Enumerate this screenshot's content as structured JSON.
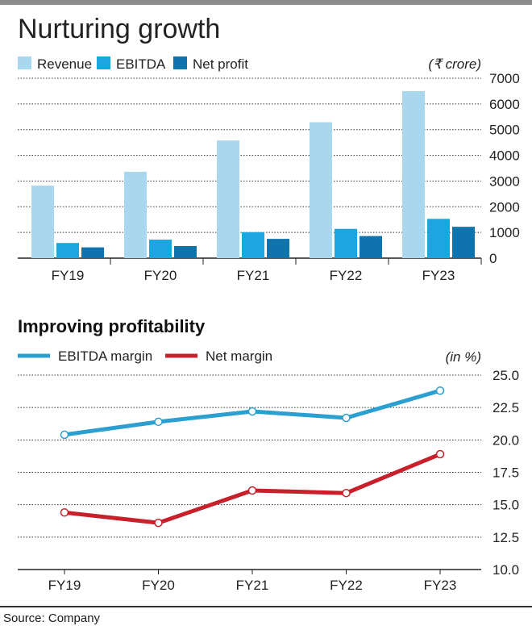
{
  "source": "Source: Company",
  "chart_data": [
    {
      "type": "bar",
      "title": "Nurturing growth",
      "unit": "(₹ crore)",
      "categories": [
        "FY19",
        "FY20",
        "FY21",
        "FY22",
        "FY23"
      ],
      "series": [
        {
          "name": "Revenue",
          "color": "#a9d8ee",
          "values": [
            2820,
            3360,
            4580,
            5290,
            6500
          ]
        },
        {
          "name": "EBITDA",
          "color": "#1ba6e0",
          "values": [
            590,
            720,
            1010,
            1140,
            1530
          ]
        },
        {
          "name": "Net profit",
          "color": "#0f74ad",
          "values": [
            420,
            470,
            750,
            860,
            1220
          ]
        }
      ],
      "ylim": [
        0,
        7000
      ],
      "yticks": [
        "0",
        "1000",
        "2000",
        "3000",
        "4000",
        "5000",
        "6000",
        "7000"
      ],
      "grid": true,
      "legend": "top-left"
    },
    {
      "type": "line",
      "title": "Improving profitability",
      "unit": "(in %)",
      "categories": [
        "FY19",
        "FY20",
        "FY21",
        "FY22",
        "FY23"
      ],
      "series": [
        {
          "name": "EBITDA margin",
          "color": "#2a9fd0",
          "values": [
            20.4,
            21.4,
            22.2,
            21.7,
            23.8
          ]
        },
        {
          "name": "Net margin",
          "color": "#c8202a",
          "values": [
            14.4,
            13.6,
            16.1,
            15.9,
            18.9
          ]
        }
      ],
      "ylim": [
        10,
        25
      ],
      "yticks": [
        "10.0",
        "12.5",
        "15.0",
        "17.5",
        "20.0",
        "22.5",
        "25.0"
      ],
      "grid": true,
      "legend": "top-left"
    }
  ]
}
